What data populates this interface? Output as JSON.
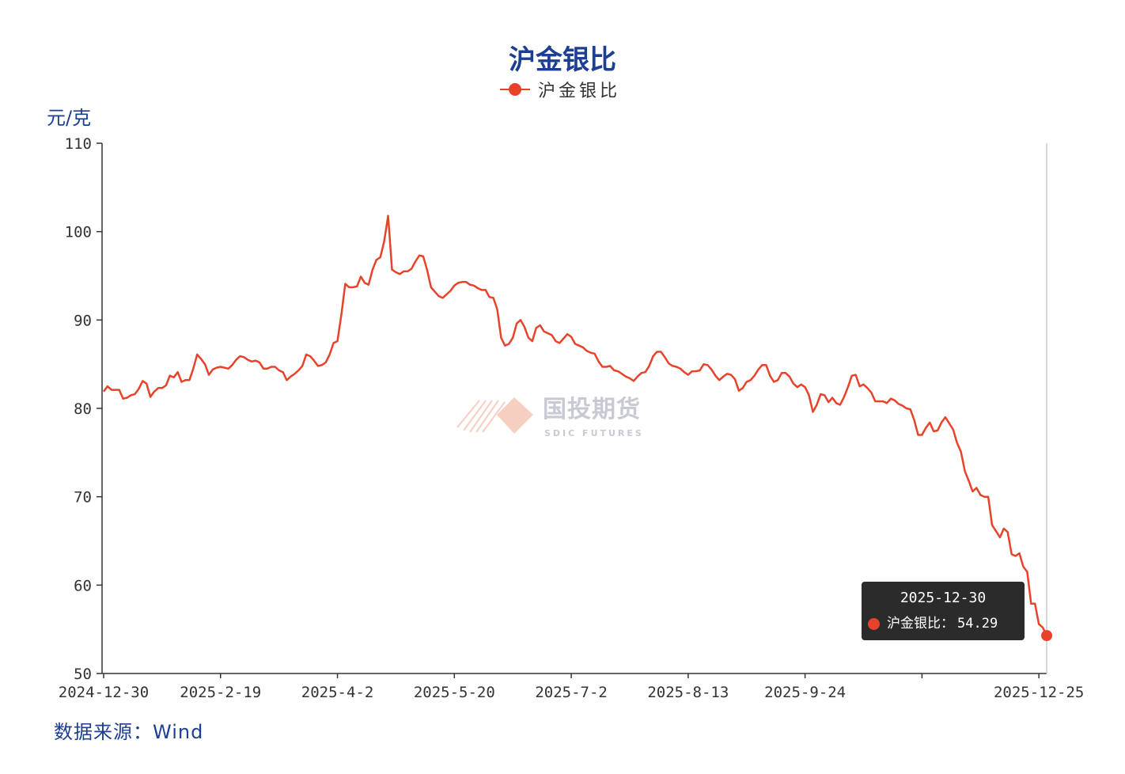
{
  "title": "沪金银比",
  "legend": {
    "label": "沪金银比",
    "icon": "line-with-dot"
  },
  "unit": "元/克",
  "source": "数据来源：Wind",
  "watermark": {
    "text": "国投期货",
    "sub": "SDIC FUTURES"
  },
  "tooltip": {
    "date": "2025-12-30",
    "series": "沪金银比",
    "sep": "：",
    "value": "54.29"
  },
  "colors": {
    "line": "#e8432a",
    "title": "#1c3f94",
    "axis": "#333333",
    "tooltip_bg": "#2b2b2b"
  },
  "chart_data": {
    "type": "line",
    "title": "沪金银比",
    "ylabel": "元/克",
    "xlabel": "",
    "ylim": [
      50,
      110
    ],
    "yticks": [
      50,
      60,
      70,
      80,
      90,
      100,
      110
    ],
    "x_start": "2024-12-30",
    "x_end": "2025-12-30",
    "xtick_labels": [
      "2024-12-30",
      "2025-2-19",
      "2025-4-2",
      "2025-5-20",
      "2025-7-2",
      "2025-8-13",
      "2025-9-24",
      "",
      "2025-12-25"
    ],
    "xtick_every": 30,
    "grid": false,
    "legend_position": "top-center",
    "series": [
      {
        "name": "沪金银比",
        "values": [
          81.9,
          82.5,
          82.1,
          82.1,
          82.1,
          81.1,
          81.2,
          81.5,
          81.6,
          82.2,
          83.1,
          82.8,
          81.3,
          81.9,
          82.3,
          82.3,
          82.6,
          83.7,
          83.5,
          84.1,
          83.0,
          83.2,
          83.2,
          84.5,
          86.1,
          85.6,
          85.0,
          83.8,
          84.4,
          84.6,
          84.7,
          84.6,
          84.5,
          84.9,
          85.5,
          85.9,
          85.8,
          85.5,
          85.3,
          85.4,
          85.2,
          84.5,
          84.5,
          84.7,
          84.7,
          84.3,
          84.1,
          83.2,
          83.6,
          83.9,
          84.3,
          84.8,
          86.1,
          85.9,
          85.4,
          84.8,
          84.9,
          85.2,
          86.1,
          87.4,
          87.6,
          90.6,
          94.1,
          93.7,
          93.7,
          93.8,
          94.9,
          94.2,
          94.0,
          95.7,
          96.8,
          97.1,
          98.9,
          101.8,
          95.7,
          95.4,
          95.2,
          95.5,
          95.5,
          95.8,
          96.6,
          97.3,
          97.2,
          95.7,
          93.7,
          93.2,
          92.7,
          92.5,
          92.9,
          93.3,
          93.9,
          94.2,
          94.3,
          94.3,
          94.0,
          93.9,
          93.6,
          93.4,
          93.4,
          92.6,
          92.5,
          91.2,
          88.0,
          87.1,
          87.3,
          88.0,
          89.6,
          90.0,
          89.2,
          88.0,
          87.6,
          89.1,
          89.4,
          88.7,
          88.5,
          88.3,
          87.6,
          87.4,
          87.9,
          88.4,
          88.1,
          87.3,
          87.1,
          86.9,
          86.5,
          86.3,
          86.2,
          85.3,
          84.7,
          84.7,
          84.8,
          84.3,
          84.2,
          83.9,
          83.6,
          83.4,
          83.1,
          83.6,
          84.0,
          84.1,
          84.8,
          85.9,
          86.4,
          86.4,
          85.8,
          85.1,
          84.8,
          84.7,
          84.5,
          84.1,
          83.8,
          84.2,
          84.2,
          84.3,
          85.0,
          84.9,
          84.4,
          83.7,
          83.2,
          83.6,
          83.9,
          83.8,
          83.3,
          82.0,
          82.3,
          83.0,
          83.2,
          83.7,
          84.4,
          84.9,
          84.9,
          83.7,
          83.0,
          83.2,
          84.0,
          84.0,
          83.6,
          82.8,
          82.4,
          82.7,
          82.4,
          81.5,
          79.6,
          80.4,
          81.6,
          81.5,
          80.7,
          81.2,
          80.6,
          80.4,
          81.3,
          82.4,
          83.7,
          83.8,
          82.5,
          82.7,
          82.3,
          81.8,
          80.8,
          80.8,
          80.8,
          80.6,
          81.1,
          80.9,
          80.5,
          80.3,
          80.0,
          79.9,
          78.7,
          77.0,
          77.0,
          77.8,
          78.4,
          77.4,
          77.5,
          78.4,
          79.0,
          78.3,
          77.6,
          76.1,
          75.1,
          72.9,
          71.8,
          70.6,
          71.0,
          70.2,
          70.0,
          70.0,
          66.8,
          66.1,
          65.4,
          66.4,
          66.0,
          63.5,
          63.3,
          63.6,
          62.1,
          61.5,
          57.9,
          57.9,
          55.6,
          55.2,
          54.29
        ]
      }
    ]
  }
}
